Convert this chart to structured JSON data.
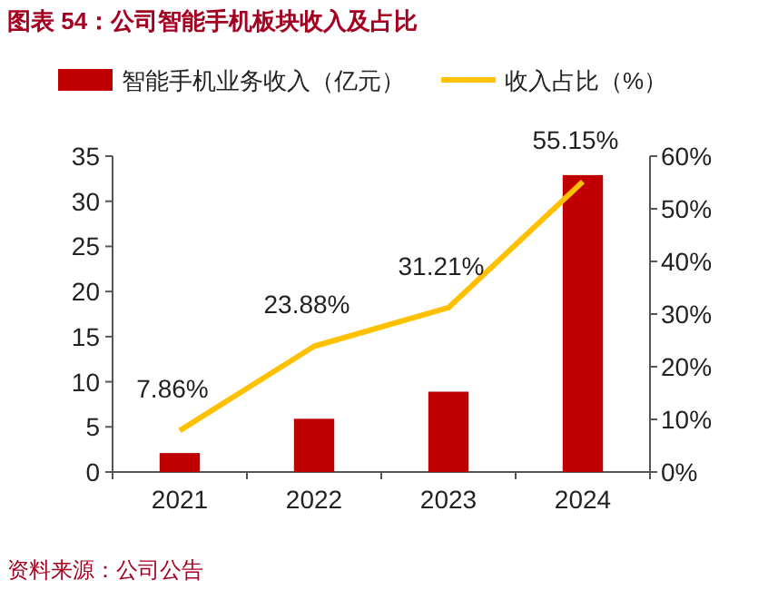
{
  "chart_data": {
    "type": "bar",
    "title": "图表 54：公司智能手机板块收入及占比",
    "annotations": [
      "资料来源：公司公告"
    ],
    "categories": [
      "2021",
      "2022",
      "2023",
      "2024"
    ],
    "series": [
      {
        "name": "智能手机业务收入（亿元）",
        "color": "#c00000",
        "values": [
          2.1,
          5.9,
          8.9,
          32.9
        ]
      },
      {
        "name": "收入占比（%）",
        "type": "line",
        "axis": "y2",
        "color": "#ffc000",
        "values": [
          7.86,
          23.88,
          31.21,
          55.15
        ],
        "value_labels": [
          "7.86%",
          "23.88%",
          "31.21%",
          "55.15%"
        ]
      }
    ],
    "ylim": [
      0,
      35
    ],
    "yticks": [
      0,
      5,
      10,
      15,
      20,
      25,
      30,
      35
    ],
    "y2lim": [
      0,
      60
    ],
    "y2ticks": [
      {
        "value": 0,
        "label": "0%"
      },
      {
        "value": 10,
        "label": "10%"
      },
      {
        "value": 20,
        "label": "20%"
      },
      {
        "value": 30,
        "label": "30%"
      },
      {
        "value": 40,
        "label": "40%"
      },
      {
        "value": 50,
        "label": "50%"
      },
      {
        "value": 60,
        "label": "60%"
      }
    ],
    "legend": "top",
    "grid": false
  }
}
